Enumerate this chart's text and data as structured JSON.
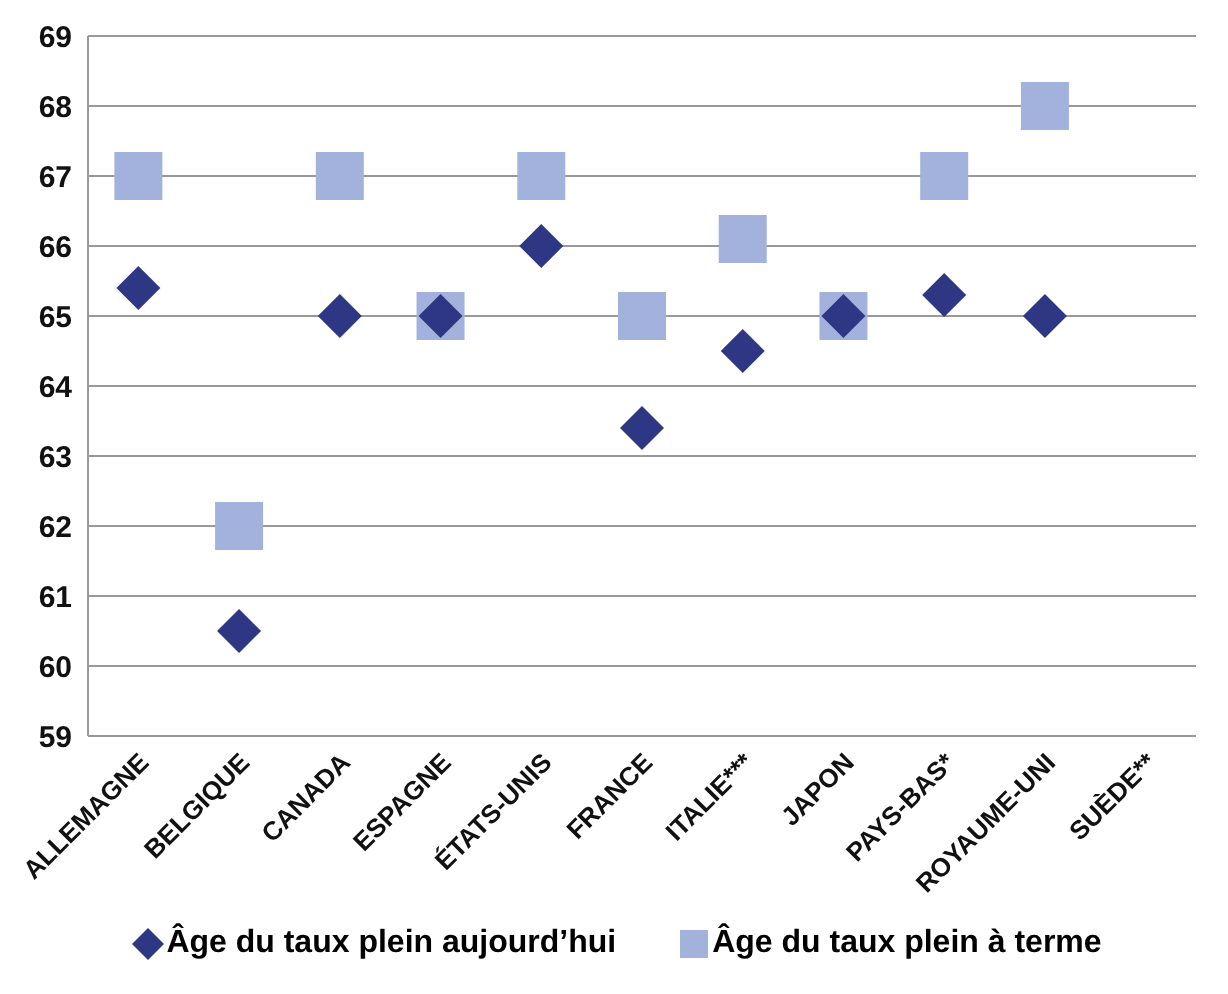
{
  "chart_data": {
    "type": "scatter",
    "categories": [
      "ALLEMAGNE",
      "BELGIQUE",
      "CANADA",
      "ESPAGNE",
      "ÉTATS-UNIS",
      "FRANCE",
      "ITALIE***",
      "JAPON",
      "PAYS-BAS*",
      "ROYAUME-UNI",
      "SUÈDE**"
    ],
    "series": [
      {
        "name": "Âge du taux plein à terme",
        "color": "#a3b1dd",
        "marker": "square",
        "values": [
          67,
          62,
          67,
          65,
          67,
          65,
          66.1,
          65,
          67,
          68,
          null
        ]
      },
      {
        "name": "Âge du taux plein aujourd’hui",
        "color": "#2e3784",
        "marker": "diamond",
        "values": [
          65.4,
          60.5,
          65,
          65,
          66,
          63.4,
          64.5,
          65,
          65.3,
          65,
          null
        ]
      }
    ],
    "ylim": [
      59,
      69
    ],
    "yticks": [
      59,
      60,
      61,
      62,
      63,
      64,
      65,
      66,
      67,
      68,
      69
    ],
    "grid": "y",
    "legend": "bottom"
  }
}
